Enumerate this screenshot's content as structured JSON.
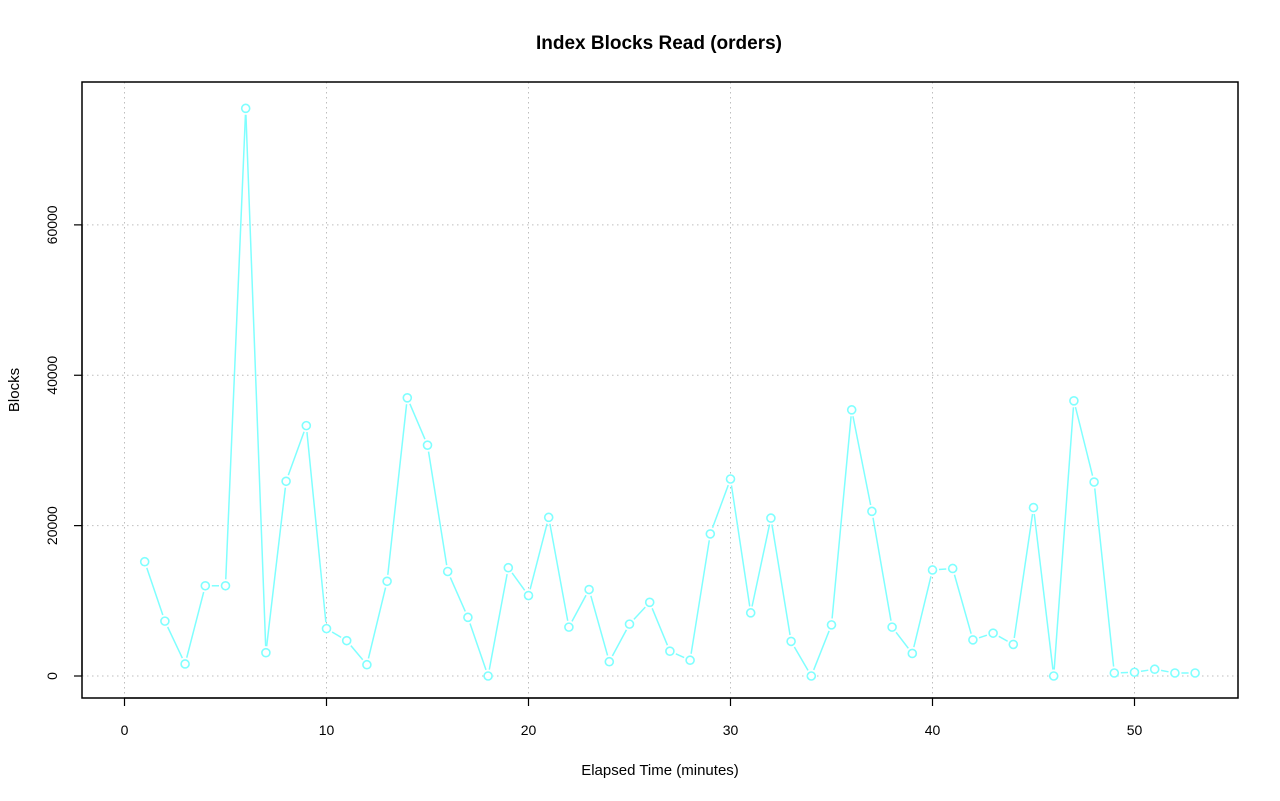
{
  "chart_data": {
    "type": "line",
    "title": "Index Blocks Read (orders)",
    "xlabel": "Elapsed Time (minutes)",
    "ylabel": "Blocks",
    "xlim": [
      0,
      53
    ],
    "ylim": [
      0,
      70000
    ],
    "x_ticks": [
      0,
      10,
      20,
      30,
      40,
      50
    ],
    "y_ticks": [
      0,
      20000,
      40000,
      60000
    ],
    "grid": true,
    "series_color": "#7fffff",
    "series": [
      {
        "x": [
          1,
          2,
          3,
          4,
          5,
          6,
          7,
          8,
          9,
          10,
          11,
          12,
          13,
          14,
          15,
          16,
          17,
          18,
          19,
          20,
          21,
          22,
          23,
          24,
          25,
          26,
          27,
          28,
          29,
          30,
          31,
          32,
          33,
          34,
          35,
          36,
          37,
          38,
          39,
          40,
          41,
          42,
          43,
          44,
          45,
          46,
          47,
          48,
          49,
          50,
          51,
          52,
          53
        ],
        "values": [
          15200,
          7300,
          1600,
          12000,
          12000,
          75500,
          3100,
          25900,
          33300,
          6300,
          4700,
          1500,
          12600,
          37000,
          30700,
          13900,
          7800,
          0,
          14400,
          10700,
          21100,
          6500,
          11500,
          1900,
          6900,
          9800,
          3300,
          2100,
          18900,
          26200,
          8400,
          21000,
          4600,
          0,
          6800,
          35400,
          21900,
          6500,
          3000,
          14100,
          14300,
          4800,
          5700,
          4200,
          22400,
          0,
          36600,
          25800,
          400,
          500,
          900,
          400,
          400
        ]
      }
    ]
  }
}
